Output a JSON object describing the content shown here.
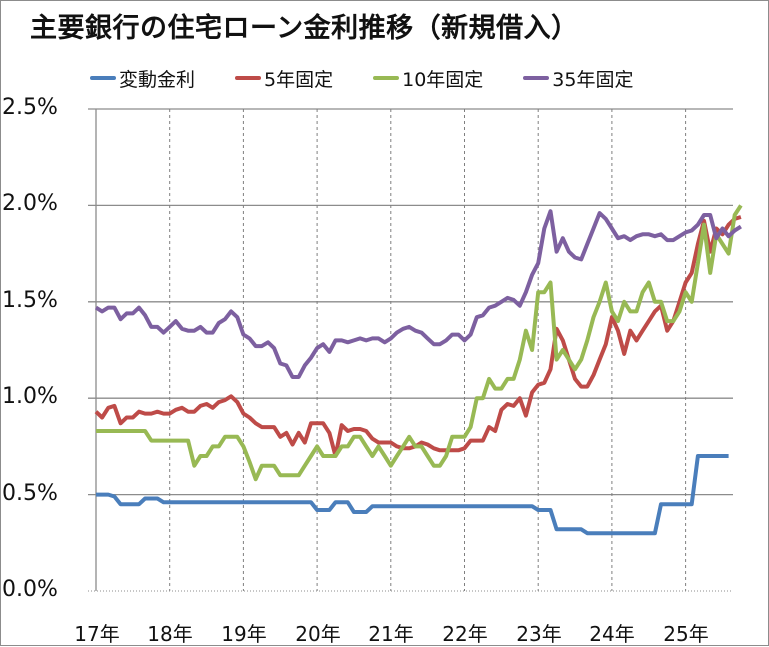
{
  "title": "主要銀行の住宅ローン金利推移（新規借入）",
  "legend": [
    {
      "label": "変動金利",
      "color": "#4a7ebb"
    },
    {
      "label": "5年固定",
      "color": "#be4b48"
    },
    {
      "label": "10年固定",
      "color": "#98b954"
    },
    {
      "label": "35年固定",
      "color": "#7d60a0"
    }
  ],
  "y_ticks": [
    "2.5%",
    "2.0%",
    "1.5%",
    "1.0%",
    "0.5%",
    "0.0%"
  ],
  "x_ticks": [
    "17年",
    "18年",
    "19年",
    "20年",
    "21年",
    "22年",
    "23年",
    "24年",
    "25年"
  ],
  "chart_data": {
    "type": "line",
    "title": "主要銀行の住宅ローン金利推移（新規借入）",
    "xlabel": "",
    "ylabel": "",
    "ylim": [
      0,
      2.5
    ],
    "grid": {
      "horizontal": true,
      "vertical_dashed_yearly": true
    },
    "legend_position": "top",
    "x_start": "2017-01",
    "x_step": "month",
    "categories": [
      "17年",
      "18年",
      "19年",
      "20年",
      "21年",
      "22年",
      "23年",
      "24年",
      "25年"
    ],
    "series": [
      {
        "name": "変動金利",
        "color": "#4a7ebb",
        "values": [
          0.5,
          0.5,
          0.5,
          0.49,
          0.45,
          0.45,
          0.45,
          0.45,
          0.48,
          0.48,
          0.48,
          0.46,
          0.46,
          0.46,
          0.46,
          0.46,
          0.46,
          0.46,
          0.46,
          0.46,
          0.46,
          0.46,
          0.46,
          0.46,
          0.46,
          0.46,
          0.46,
          0.46,
          0.46,
          0.46,
          0.46,
          0.46,
          0.46,
          0.46,
          0.46,
          0.46,
          0.42,
          0.42,
          0.42,
          0.46,
          0.46,
          0.46,
          0.41,
          0.41,
          0.41,
          0.44,
          0.44,
          0.44,
          0.44,
          0.44,
          0.44,
          0.44,
          0.44,
          0.44,
          0.44,
          0.44,
          0.44,
          0.44,
          0.44,
          0.44,
          0.44,
          0.44,
          0.44,
          0.44,
          0.44,
          0.44,
          0.44,
          0.44,
          0.44,
          0.44,
          0.44,
          0.44,
          0.42,
          0.42,
          0.42,
          0.32,
          0.32,
          0.32,
          0.32,
          0.32,
          0.3,
          0.3,
          0.3,
          0.3,
          0.3,
          0.3,
          0.3,
          0.3,
          0.3,
          0.3,
          0.3,
          0.3,
          0.45,
          0.45,
          0.45,
          0.45,
          0.45,
          0.45,
          0.7,
          0.7,
          0.7,
          0.7,
          0.7,
          0.7
        ]
      },
      {
        "name": "5年固定",
        "color": "#be4b48",
        "values": [
          0.93,
          0.9,
          0.95,
          0.96,
          0.87,
          0.9,
          0.9,
          0.93,
          0.92,
          0.92,
          0.93,
          0.92,
          0.92,
          0.94,
          0.95,
          0.93,
          0.93,
          0.96,
          0.97,
          0.95,
          0.98,
          0.99,
          1.01,
          0.98,
          0.92,
          0.9,
          0.87,
          0.85,
          0.85,
          0.85,
          0.8,
          0.82,
          0.76,
          0.82,
          0.77,
          0.87,
          0.87,
          0.87,
          0.82,
          0.7,
          0.86,
          0.83,
          0.84,
          0.84,
          0.83,
          0.79,
          0.77,
          0.77,
          0.77,
          0.75,
          0.74,
          0.74,
          0.75,
          0.77,
          0.76,
          0.74,
          0.73,
          0.73,
          0.73,
          0.73,
          0.74,
          0.78,
          0.78,
          0.78,
          0.85,
          0.83,
          0.94,
          0.97,
          0.96,
          1.0,
          0.91,
          1.03,
          1.07,
          1.08,
          1.15,
          1.36,
          1.3,
          1.2,
          1.1,
          1.06,
          1.06,
          1.12,
          1.2,
          1.28,
          1.42,
          1.35,
          1.23,
          1.35,
          1.3,
          1.35,
          1.4,
          1.45,
          1.48,
          1.35,
          1.4,
          1.5,
          1.6,
          1.65,
          1.8,
          1.92,
          1.76,
          1.88,
          1.85,
          1.9,
          1.93,
          1.94
        ]
      },
      {
        "name": "10年固定",
        "color": "#98b954",
        "values": [
          0.83,
          0.83,
          0.83,
          0.83,
          0.83,
          0.83,
          0.83,
          0.83,
          0.83,
          0.78,
          0.78,
          0.78,
          0.78,
          0.78,
          0.78,
          0.78,
          0.65,
          0.7,
          0.7,
          0.75,
          0.75,
          0.8,
          0.8,
          0.8,
          0.75,
          0.67,
          0.58,
          0.65,
          0.65,
          0.65,
          0.6,
          0.6,
          0.6,
          0.6,
          0.65,
          0.7,
          0.75,
          0.7,
          0.7,
          0.7,
          0.75,
          0.75,
          0.8,
          0.8,
          0.75,
          0.7,
          0.75,
          0.7,
          0.65,
          0.7,
          0.75,
          0.8,
          0.75,
          0.75,
          0.7,
          0.65,
          0.65,
          0.7,
          0.8,
          0.8,
          0.8,
          0.85,
          1.0,
          1.0,
          1.1,
          1.05,
          1.05,
          1.1,
          1.1,
          1.2,
          1.35,
          1.25,
          1.55,
          1.55,
          1.6,
          1.2,
          1.25,
          1.2,
          1.15,
          1.2,
          1.3,
          1.42,
          1.5,
          1.6,
          1.45,
          1.4,
          1.5,
          1.45,
          1.45,
          1.55,
          1.6,
          1.5,
          1.5,
          1.4,
          1.4,
          1.45,
          1.55,
          1.5,
          1.7,
          1.9,
          1.65,
          1.85,
          1.8,
          1.75,
          1.95,
          2.0
        ]
      },
      {
        "name": "35年固定",
        "color": "#7d60a0",
        "values": [
          1.47,
          1.45,
          1.47,
          1.47,
          1.41,
          1.44,
          1.44,
          1.47,
          1.43,
          1.37,
          1.37,
          1.34,
          1.37,
          1.4,
          1.36,
          1.35,
          1.35,
          1.37,
          1.34,
          1.34,
          1.39,
          1.41,
          1.45,
          1.42,
          1.33,
          1.31,
          1.27,
          1.27,
          1.29,
          1.26,
          1.18,
          1.17,
          1.11,
          1.11,
          1.17,
          1.21,
          1.26,
          1.28,
          1.24,
          1.3,
          1.3,
          1.29,
          1.3,
          1.31,
          1.3,
          1.31,
          1.31,
          1.29,
          1.31,
          1.34,
          1.36,
          1.37,
          1.35,
          1.34,
          1.31,
          1.28,
          1.28,
          1.3,
          1.33,
          1.33,
          1.3,
          1.33,
          1.42,
          1.43,
          1.47,
          1.48,
          1.5,
          1.52,
          1.51,
          1.48,
          1.55,
          1.64,
          1.7,
          1.88,
          1.97,
          1.76,
          1.83,
          1.76,
          1.73,
          1.72,
          1.8,
          1.88,
          1.96,
          1.93,
          1.88,
          1.83,
          1.84,
          1.82,
          1.84,
          1.85,
          1.85,
          1.84,
          1.85,
          1.82,
          1.82,
          1.84,
          1.86,
          1.87,
          1.9,
          1.95,
          1.95,
          1.83,
          1.88,
          1.84,
          1.87,
          1.89
        ]
      }
    ]
  }
}
